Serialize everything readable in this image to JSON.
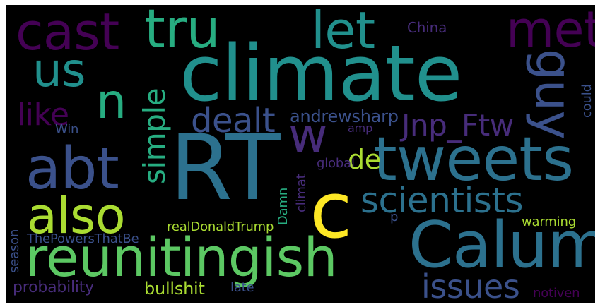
{
  "word_cloud": {
    "background": "#000000",
    "palette": [
      "#440154",
      "#472c7a",
      "#3b518b",
      "#2c718e",
      "#21908d",
      "#27ad81",
      "#5cc863",
      "#aadc32",
      "#fde725"
    ],
    "words": [
      {
        "key": "rt",
        "text": "RT",
        "color": "#2c718e"
      },
      {
        "key": "climate",
        "text": "climate",
        "color": "#21908d"
      },
      {
        "key": "tweets",
        "text": "tweets",
        "color": "#2c718e"
      },
      {
        "key": "calum",
        "text": "Calum",
        "color": "#2c718e"
      },
      {
        "key": "reunitingish",
        "text": "reunitingish",
        "color": "#5cc863"
      },
      {
        "key": "abt",
        "text": "abt",
        "color": "#3b518b"
      },
      {
        "key": "also",
        "text": "also",
        "color": "#aadc32"
      },
      {
        "key": "c",
        "text": "c",
        "color": "#fde725"
      },
      {
        "key": "cast",
        "text": "cast",
        "color": "#440154"
      },
      {
        "key": "tru",
        "text": "tru",
        "color": "#27ad81"
      },
      {
        "key": "let",
        "text": "let",
        "color": "#21908d"
      },
      {
        "key": "met",
        "text": "met",
        "color": "#440154"
      },
      {
        "key": "us",
        "text": "us",
        "color": "#21908d"
      },
      {
        "key": "n",
        "text": "n",
        "color": "#27ad81"
      },
      {
        "key": "guy",
        "text": "guy",
        "color": "#3b518b"
      },
      {
        "key": "w",
        "text": "w",
        "color": "#472c7a"
      },
      {
        "key": "scientists",
        "text": "scientists",
        "color": "#2c718e"
      },
      {
        "key": "issues",
        "text": "issues",
        "color": "#3b518b"
      },
      {
        "key": "dealt",
        "text": "dealt",
        "color": "#3b518b"
      },
      {
        "key": "simple",
        "text": "simple",
        "color": "#27ad81"
      },
      {
        "key": "like",
        "text": "like",
        "color": "#440154"
      },
      {
        "key": "jnp_ftw",
        "text": "Jnp_Ftw",
        "color": "#472c7a"
      },
      {
        "key": "de",
        "text": "de",
        "color": "#aadc32"
      },
      {
        "key": "andrewsharp",
        "text": "andrewsharp",
        "color": "#3b518b"
      },
      {
        "key": "china",
        "text": "China",
        "color": "#472c7a"
      },
      {
        "key": "win",
        "text": "Win",
        "color": "#3b518b"
      },
      {
        "key": "amp",
        "text": "amp",
        "color": "#472c7a"
      },
      {
        "key": "could",
        "text": "could",
        "color": "#3b518b"
      },
      {
        "key": "global",
        "text": "global",
        "color": "#472c7a"
      },
      {
        "key": "climat",
        "text": "climat",
        "color": "#472c7a"
      },
      {
        "key": "damn",
        "text": "Damn",
        "color": "#27ad81"
      },
      {
        "key": "realdonaldtrump",
        "text": "realDonaldTrump",
        "color": "#aadc32"
      },
      {
        "key": "thepowersthatbe",
        "text": "ThePowersThatBe",
        "color": "#3b518b"
      },
      {
        "key": "warming",
        "text": "warming",
        "color": "#aadc32"
      },
      {
        "key": "p",
        "text": "p",
        "color": "#3b518b"
      },
      {
        "key": "season",
        "text": "season",
        "color": "#3b518b"
      },
      {
        "key": "probability",
        "text": "probability",
        "color": "#472c7a"
      },
      {
        "key": "bullshit",
        "text": "bullshit",
        "color": "#aadc32"
      },
      {
        "key": "late",
        "text": "late",
        "color": "#3b518b"
      },
      {
        "key": "notiven",
        "text": "notiven",
        "color": "#440154"
      }
    ]
  }
}
